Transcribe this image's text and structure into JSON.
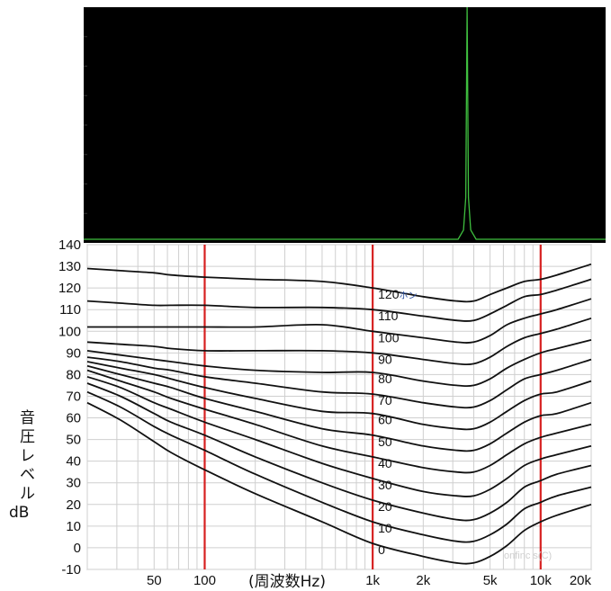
{
  "chart_data": [
    {
      "type": "line",
      "panel": "spectrum",
      "background": "#000000",
      "line_color": "#3fbf3f",
      "peak_x": 3200,
      "description_values": {
        "baseline": 0.02,
        "peak": 1.0
      }
    },
    {
      "type": "line",
      "panel": "equal-loudness-contours",
      "xscale": "log",
      "xlim": [
        20,
        20000
      ],
      "ylim": [
        -10,
        140
      ],
      "yticks": [
        140,
        130,
        120,
        110,
        100,
        90,
        80,
        70,
        60,
        50,
        40,
        30,
        20,
        10,
        0,
        -10
      ],
      "xtick_labels": [
        {
          "x": 50,
          "label": "50"
        },
        {
          "x": 100,
          "label": "100"
        },
        {
          "x": 1000,
          "label": "1k"
        },
        {
          "x": 2000,
          "label": "2k"
        },
        {
          "x": 5000,
          "label": "5k"
        },
        {
          "x": 10000,
          "label": "10k"
        },
        {
          "x": 20000,
          "label": "20k"
        }
      ],
      "xlabel": "(周波数Hz)",
      "ylabel_lines": [
        "音",
        "圧",
        "レ",
        "ベ",
        "ル",
        "dB"
      ],
      "marker_lines": [
        100,
        1000,
        10000
      ],
      "marker_color": "#d62020",
      "freqs": [
        20,
        31.5,
        50,
        63,
        100,
        200,
        500,
        1000,
        2000,
        3150,
        4000,
        5000,
        6300,
        8000,
        10000,
        12500,
        20000
      ],
      "series": [
        {
          "label": "0",
          "values": [
            67,
            59,
            49,
            44,
            36,
            25,
            12,
            2,
            -4,
            -7,
            -7,
            -4,
            1,
            8,
            12,
            15,
            20
          ]
        },
        {
          "label": "10",
          "values": [
            72,
            65,
            56,
            52,
            45,
            34,
            21,
            12,
            6,
            3,
            3,
            6,
            11,
            18,
            21,
            24,
            28
          ]
        },
        {
          "label": "20",
          "values": [
            76,
            70,
            62,
            58,
            52,
            42,
            30,
            22,
            16,
            13,
            13,
            16,
            21,
            28,
            31,
            34,
            38
          ]
        },
        {
          "label": "30",
          "values": [
            79,
            74,
            67,
            64,
            58,
            50,
            39,
            32,
            26,
            24,
            24,
            27,
            32,
            38,
            41,
            43,
            47
          ]
        },
        {
          "label": "40",
          "values": [
            82,
            77,
            72,
            69,
            64,
            57,
            47,
            42,
            37,
            35,
            35,
            38,
            43,
            48,
            51,
            53,
            57
          ]
        },
        {
          "label": "50",
          "values": [
            84,
            80,
            76,
            74,
            69,
            63,
            55,
            52,
            47,
            45,
            45,
            48,
            53,
            58,
            61,
            62,
            67
          ]
        },
        {
          "label": "60",
          "values": [
            86,
            83,
            80,
            78,
            74,
            69,
            63,
            62,
            57,
            55,
            55,
            58,
            63,
            68,
            71,
            72,
            77
          ]
        },
        {
          "label": "70",
          "values": [
            88,
            86,
            83,
            82,
            79,
            76,
            72,
            71,
            67,
            65,
            65,
            68,
            73,
            78,
            80,
            82,
            87
          ]
        },
        {
          "label": "80",
          "values": [
            91,
            89,
            87,
            86,
            84,
            82,
            81,
            81,
            77,
            75,
            75,
            78,
            83,
            87,
            90,
            92,
            96
          ]
        },
        {
          "label": "90",
          "values": [
            95,
            94,
            93,
            92,
            91,
            91,
            91,
            90,
            87,
            85,
            85,
            88,
            93,
            97,
            99,
            101,
            106
          ]
        },
        {
          "label": "100",
          "values": [
            102,
            102,
            102,
            102,
            102,
            102,
            103,
            100,
            97,
            95,
            95,
            98,
            103,
            106,
            108,
            110,
            115
          ]
        },
        {
          "label": "110",
          "values": [
            114,
            113,
            112,
            112,
            112,
            111,
            111,
            110,
            107,
            105,
            105,
            108,
            112,
            116,
            117,
            119,
            124
          ]
        },
        {
          "label": "120ホン",
          "values": [
            129,
            128,
            127,
            126,
            125,
            124,
            123,
            120,
            116,
            114,
            114,
            117,
            120,
            123,
            124,
            126,
            131
          ]
        }
      ],
      "watermark": "onfinc s(C)"
    }
  ]
}
